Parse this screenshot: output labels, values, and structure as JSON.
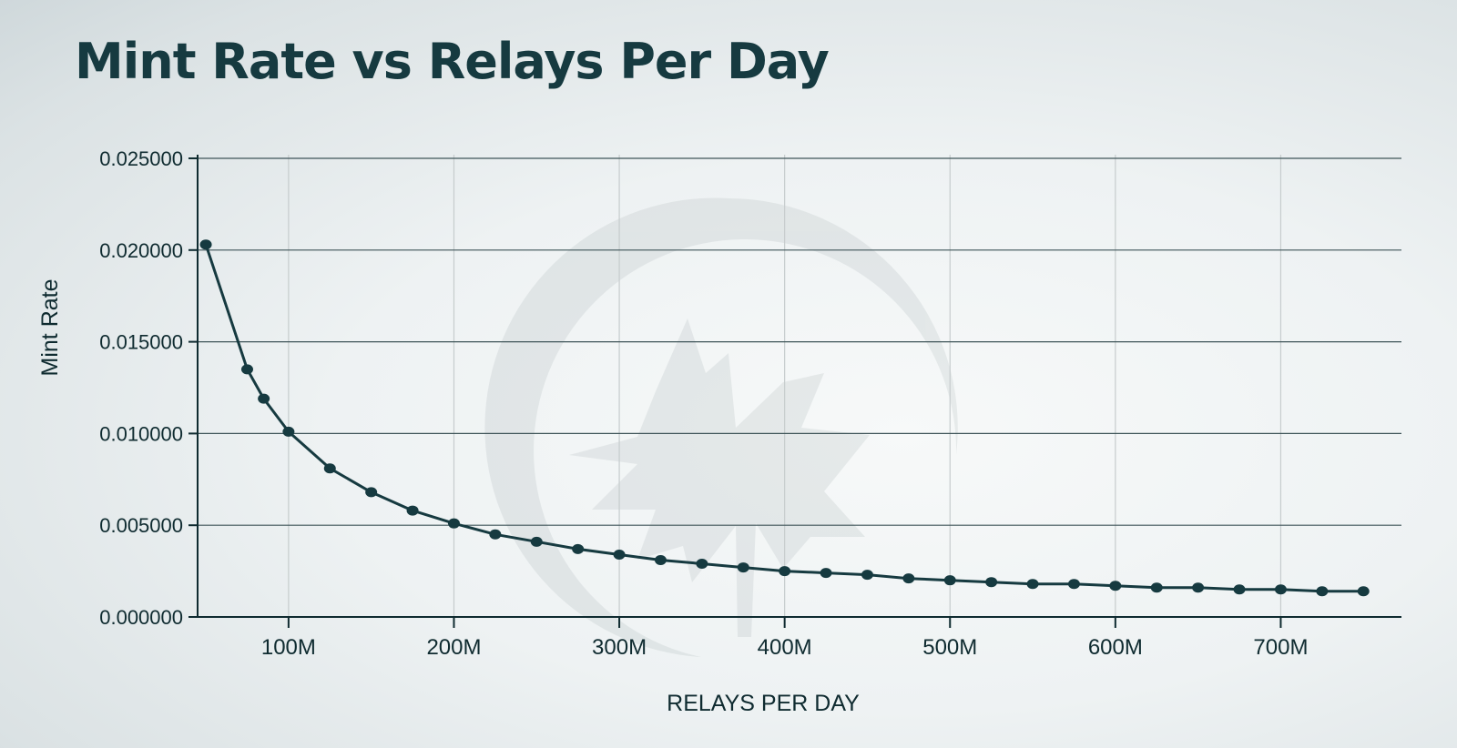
{
  "chart_data": {
    "type": "line",
    "title": "Mint Rate vs Relays Per Day",
    "xlabel": "RELAYS PER DAY",
    "ylabel": "Mint Rate",
    "x_unit": "M",
    "xlim": [
      45,
      773
    ],
    "ylim": [
      0,
      0.025
    ],
    "x_ticks": [
      100,
      200,
      300,
      400,
      500,
      600,
      700
    ],
    "x_tick_labels": [
      "100M",
      "200M",
      "300M",
      "400M",
      "500M",
      "600M",
      "700M"
    ],
    "y_ticks": [
      0,
      0.005,
      0.01,
      0.015,
      0.02,
      0.025
    ],
    "y_tick_labels": [
      "0.000000",
      "0.005000",
      "0.010000",
      "0.015000",
      "0.020000",
      "0.025000"
    ],
    "grid": true,
    "line_color": "#163a40",
    "series": [
      {
        "x": [
          50,
          75,
          85,
          100,
          125,
          150,
          175,
          200,
          225,
          250,
          275,
          300,
          325,
          350,
          375,
          400,
          425,
          450,
          475,
          500,
          525,
          550,
          575,
          600,
          625,
          650,
          675,
          700,
          725,
          750
        ],
        "values": [
          0.0203,
          0.0135,
          0.0119,
          0.0101,
          0.0081,
          0.0068,
          0.0058,
          0.0051,
          0.0045,
          0.0041,
          0.0037,
          0.0034,
          0.0031,
          0.0029,
          0.0027,
          0.0025,
          0.0024,
          0.0023,
          0.0021,
          0.002,
          0.0019,
          0.0018,
          0.0018,
          0.0017,
          0.0016,
          0.0016,
          0.0015,
          0.0015,
          0.0014,
          0.0014
        ]
      }
    ]
  }
}
